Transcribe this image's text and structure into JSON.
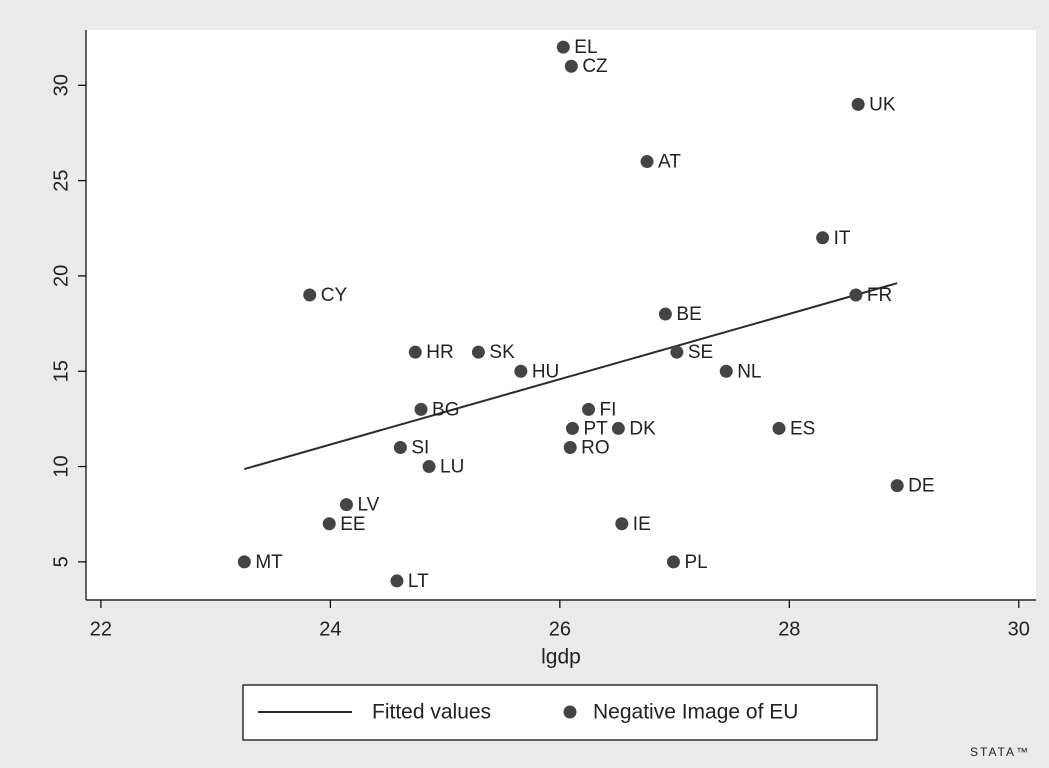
{
  "chart_data": {
    "type": "scatter",
    "x_label": "lgdp",
    "xlim": [
      21.87,
      30.15
    ],
    "xticks": [
      22,
      24,
      26,
      28,
      30
    ],
    "ylim": [
      3.0,
      32.9
    ],
    "yticks": [
      5,
      10,
      15,
      20,
      25,
      30
    ],
    "grid": false,
    "legend": "bottom",
    "logo": "STATA™",
    "series": [
      {
        "name": "Fitted values",
        "type": "line",
        "color": "#2b2b2b",
        "x": [
          23.25,
          28.94
        ],
        "values": [
          9.87,
          19.62
        ]
      },
      {
        "name": "Negative Image of EU",
        "type": "scatter",
        "color": "#444444",
        "labels": [
          "EL",
          "CZ",
          "UK",
          "AT",
          "IT",
          "CY",
          "FR",
          "BE",
          "HR",
          "SK",
          "SE",
          "HU",
          "NL",
          "BG",
          "FI",
          "PT",
          "DK",
          "ES",
          "SI",
          "RO",
          "LU",
          "DE",
          "LV",
          "EE",
          "IE",
          "MT",
          "PL",
          "LT"
        ],
        "x": [
          26.03,
          26.1,
          28.6,
          26.76,
          28.29,
          23.82,
          28.58,
          26.92,
          24.74,
          25.29,
          27.02,
          25.66,
          27.45,
          24.79,
          26.25,
          26.11,
          26.51,
          27.91,
          24.61,
          26.09,
          24.86,
          28.94,
          24.14,
          23.99,
          26.54,
          23.25,
          26.99,
          24.58
        ],
        "values": [
          32,
          31,
          29,
          26,
          22,
          19,
          19,
          18,
          16,
          16,
          16,
          15,
          15,
          13,
          13,
          12,
          12,
          12,
          11,
          11,
          10,
          9,
          8,
          7,
          7,
          5,
          5,
          4
        ]
      }
    ]
  }
}
